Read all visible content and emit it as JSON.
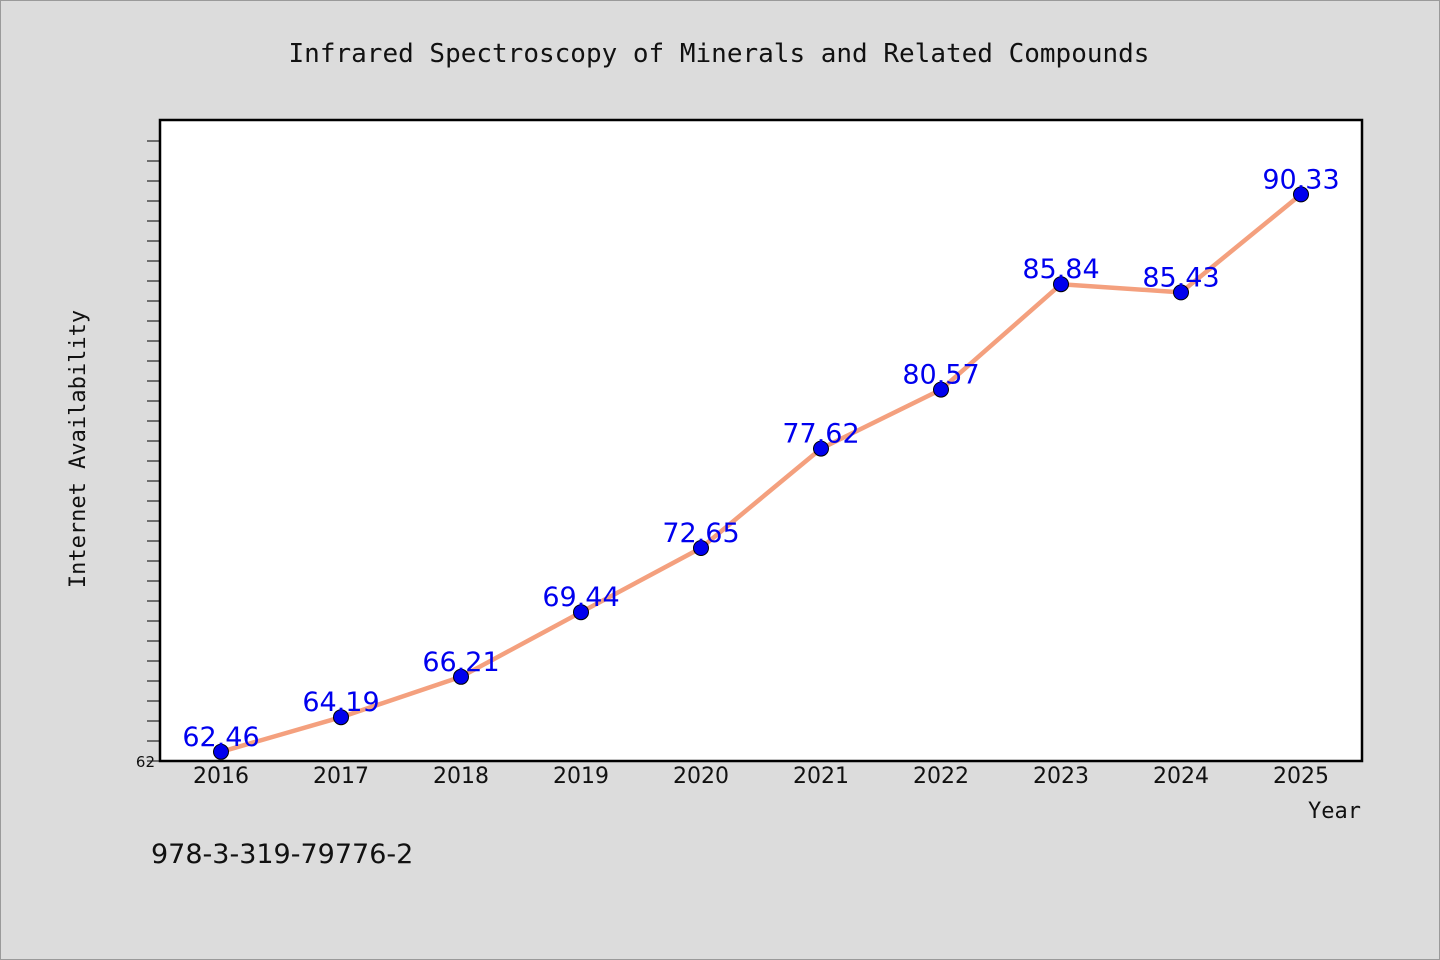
{
  "chart_data": {
    "type": "line",
    "title": "Infrared Spectroscopy of Minerals and Related Compounds",
    "xlabel": "Year",
    "ylabel": "Internet Availability",
    "x": [
      "2016",
      "2017",
      "2018",
      "2019",
      "2020",
      "2021",
      "2022",
      "2023",
      "2024",
      "2025"
    ],
    "series": [
      {
        "values": [
          62.46,
          64.19,
          66.21,
          69.44,
          72.65,
          77.62,
          80.57,
          85.84,
          85.43,
          90.33
        ]
      }
    ],
    "ylim": [
      62,
      94
    ],
    "y_tick_labels": [
      "62"
    ],
    "grid": false,
    "legend": "none",
    "colors": {
      "line": "#f4a07e",
      "marker": "#0000ee",
      "data_label": "#0000ee",
      "plot_background": "#ffffff",
      "page_background": "#dcdcdc"
    }
  },
  "footer": {
    "isbn": "978-3-319-79776-2"
  }
}
